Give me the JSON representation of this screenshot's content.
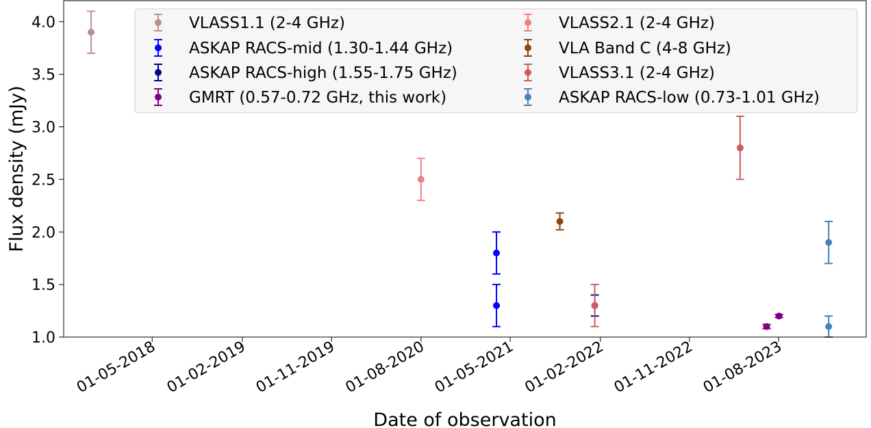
{
  "chart_data": {
    "type": "scatter",
    "title": "",
    "xlabel": "Date of observation",
    "ylabel": "Flux density (mJy)",
    "ylim": [
      1.0,
      4.2
    ],
    "yticks": [
      1.0,
      1.5,
      2.0,
      2.5,
      3.0,
      3.5,
      4.0
    ],
    "ytick_labels": [
      "1.0",
      "1.5",
      "2.0",
      "2.5",
      "3.0",
      "3.5",
      "4.0"
    ],
    "xlim": [
      "2017-08-03",
      "2024-04-25"
    ],
    "xticks": [
      "2018-05-01",
      "2019-02-01",
      "2019-11-01",
      "2020-08-01",
      "2021-05-01",
      "2022-02-01",
      "2022-11-01",
      "2023-08-01"
    ],
    "xtick_labels": [
      "01-05-2018",
      "01-02-2019",
      "01-11-2019",
      "01-08-2020",
      "01-05-2021",
      "01-02-2022",
      "01-11-2022",
      "01-08-2023"
    ],
    "legend_position": "top-right",
    "series": [
      {
        "name": "VLASS1.1 (2-4 GHz)",
        "color": "#bc8f8f",
        "points": [
          {
            "x": "2017-10-26",
            "y": 3.9,
            "err": 0.2
          }
        ]
      },
      {
        "name": "VLASS2.1 (2-4 GHz)",
        "color": "#f08080",
        "points": [
          {
            "x": "2020-08-01",
            "y": 2.5,
            "err": 0.2
          }
        ]
      },
      {
        "name": "ASKAP RACS-mid (1.30-1.44 GHz)",
        "color": "#0000ff",
        "points": [
          {
            "x": "2021-03-20",
            "y": 1.8,
            "err": 0.2
          },
          {
            "x": "2021-03-20",
            "y": 1.3,
            "err": 0.2
          }
        ]
      },
      {
        "name": "VLA Band C (4-8 GHz)",
        "color": "#8b4513",
        "points": [
          {
            "x": "2021-09-30",
            "y": 2.1,
            "err": 0.08
          }
        ]
      },
      {
        "name": "ASKAP RACS-high (1.55-1.75 GHz)",
        "color": "#00008b",
        "points": [
          {
            "x": "2022-01-15",
            "y": 1.3,
            "err": 0.1
          }
        ]
      },
      {
        "name": "VLASS3.1 (2-4 GHz)",
        "color": "#cd5c5c",
        "points": [
          {
            "x": "2023-04-05",
            "y": 2.8,
            "err": 0.3
          },
          {
            "x": "2022-01-15",
            "y": 1.3,
            "err": 0.2
          }
        ]
      },
      {
        "name": "GMRT (0.57-0.72 GHz, this work)",
        "color": "#800080",
        "points": [
          {
            "x": "2023-06-25",
            "y": 1.1,
            "err": 0.02
          },
          {
            "x": "2023-08-02",
            "y": 1.2,
            "err": 0.015
          }
        ]
      },
      {
        "name": "ASKAP RACS-low (0.73-1.01 GHz)",
        "color": "#4682b4",
        "points": [
          {
            "x": "2024-01-01",
            "y": 1.9,
            "err": 0.2
          },
          {
            "x": "2024-01-01",
            "y": 1.1,
            "err": 0.1
          }
        ]
      }
    ]
  }
}
